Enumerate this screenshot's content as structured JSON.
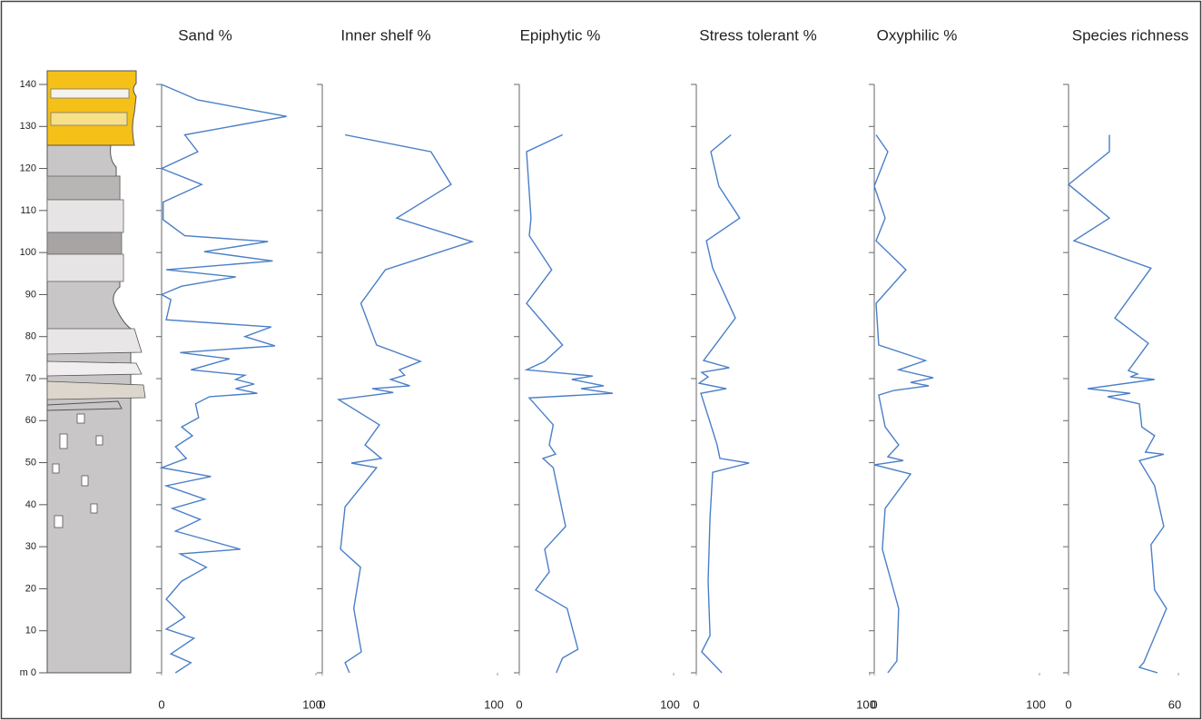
{
  "depth_axis": {
    "xlim": [
      0,
      140
    ],
    "xticks": [
      {
        "value": 0,
        "label": "m 0"
      },
      10,
      20,
      30,
      40,
      50,
      60,
      70,
      80,
      90,
      100,
      110,
      120,
      130,
      140
    ]
  },
  "chart_data": [
    {
      "type": "line",
      "title": "Sand %",
      "color": "#4a7fc8",
      "ylim": [
        0,
        100
      ],
      "yticks": [
        0,
        100
      ],
      "x": [
        140,
        136.3,
        132.4,
        128,
        124,
        120,
        116.2,
        112,
        107.8,
        104,
        102.6,
        100.2,
        98,
        95.9,
        94.2,
        92,
        90,
        88.8,
        84,
        82.3,
        80,
        77.8,
        76.2,
        74.7,
        72.1,
        70.8,
        69.8,
        68.7,
        67.6,
        66.5,
        65.7,
        64,
        60.7,
        58.5,
        56.4,
        53.8,
        51,
        48.8,
        46.7,
        44.5,
        41.3,
        39.1,
        36.5,
        33.7,
        29.4,
        28.3,
        25.1,
        21.8,
        17.5,
        13.2,
        10.4,
        8.2,
        4.5,
        2.4,
        0
      ],
      "values": [
        0,
        23.5,
        81,
        15,
        23.5,
        0,
        26,
        1,
        1,
        15,
        69,
        27.6,
        72,
        3,
        48,
        13,
        0,
        6,
        3,
        71,
        54,
        73.5,
        12,
        44,
        19,
        54,
        48,
        60,
        48,
        62,
        31,
        22,
        24,
        13,
        20,
        9,
        16,
        0,
        32,
        3,
        28,
        7,
        25,
        9,
        51,
        12,
        29,
        13,
        3,
        15,
        3,
        21,
        6,
        19,
        9
      ]
    },
    {
      "type": "line",
      "title": "Inner shelf %",
      "color": "#4a7fc8",
      "ylim": [
        0,
        100
      ],
      "yticks": [
        0,
        100
      ],
      "x": [
        128,
        124,
        116.2,
        108.2,
        102.6,
        95.9,
        87.9,
        78,
        74.1,
        72.1,
        70.8,
        69.8,
        68.3,
        67.6,
        66.7,
        65,
        59,
        54.2,
        51,
        49.9,
        48.8,
        39.5,
        29.4,
        25.1,
        15.3,
        5,
        2.4,
        0
      ],
      "values": [
        13,
        62,
        73.5,
        42.5,
        85.5,
        36,
        22,
        31,
        56,
        44,
        47,
        39,
        50,
        28.5,
        40.5,
        9.3,
        32.6,
        24.4,
        33.7,
        16.6,
        31,
        13,
        10.4,
        21.8,
        18,
        22.3,
        13,
        15.5
      ]
    },
    {
      "type": "line",
      "title": "Epiphytic %",
      "color": "#4a7fc8",
      "ylim": [
        0,
        100
      ],
      "yticks": [
        0,
        100
      ],
      "x": [
        128,
        124,
        108.2,
        104,
        95.9,
        87.9,
        78,
        74.1,
        72.1,
        70.6,
        69.8,
        68.3,
        67.6,
        66.5,
        65.4,
        59,
        54.2,
        52,
        51,
        48.8,
        34.8,
        29.4,
        24,
        19.7,
        15.3,
        5.6,
        3.5,
        0
      ],
      "values": [
        28,
        4.7,
        7.6,
        6.5,
        21,
        4.7,
        28,
        16.5,
        4.7,
        47.6,
        34,
        54.7,
        40,
        60.6,
        6.5,
        22,
        19.4,
        23.5,
        15.3,
        22,
        30,
        16.5,
        19.4,
        10.6,
        31,
        38,
        28,
        24
      ]
    },
    {
      "type": "line",
      "title": "Stress tolerant %",
      "color": "#4a7fc8",
      "ylim": [
        0,
        100
      ],
      "yticks": [
        0,
        100
      ],
      "x": [
        128,
        124,
        115.8,
        108.2,
        102.8,
        96.3,
        84.4,
        74.3,
        72.6,
        71.5,
        70.4,
        68.9,
        67.6,
        66.5,
        59.6,
        54.2,
        51,
        49.9,
        47.7,
        36.9,
        21.8,
        8.9,
        5,
        0
      ],
      "values": [
        20,
        8.4,
        13,
        25,
        5.8,
        9.4,
        22.5,
        4.2,
        19,
        3.1,
        6.8,
        1.6,
        17.3,
        2.6,
        7.9,
        12,
        13.6,
        30.4,
        9.4,
        7.9,
        6.8,
        7.9,
        3.1,
        14.7
      ]
    },
    {
      "type": "line",
      "title": "Oxyphilic %",
      "color": "#4a7fc8",
      "ylim": [
        0,
        100
      ],
      "yticks": [
        0,
        100
      ],
      "x": [
        128,
        124,
        115.8,
        108.2,
        102.8,
        95.9,
        87.9,
        78,
        74.3,
        72.1,
        70.2,
        69.1,
        68.3,
        67.2,
        66.1,
        58.5,
        54.2,
        51.4,
        50.5,
        49.5,
        47.3,
        39.1,
        29.4,
        15.3,
        2.8,
        0
      ],
      "values": [
        1.1,
        8.2,
        0,
        6.6,
        1.1,
        19.2,
        1.1,
        2.7,
        31,
        14.8,
        35.7,
        22,
        33,
        12,
        2.7,
        6.6,
        14.8,
        8.2,
        17.6,
        0,
        22,
        6.6,
        4.9,
        14.8,
        13.7,
        8.2
      ]
    },
    {
      "type": "line",
      "title": "Species richness",
      "color": "#4a7fc8",
      "ylim": [
        0,
        60
      ],
      "yticks": [
        0,
        60
      ],
      "x": [
        128,
        124,
        116.2,
        108.2,
        102.8,
        96.3,
        84.4,
        78.4,
        71.9,
        71.1,
        70.4,
        69.8,
        67.6,
        66.5,
        65.7,
        64,
        58.5,
        56.4,
        52.5,
        52,
        50.5,
        44.5,
        34.8,
        30.5,
        19.7,
        15.3,
        2.4,
        1.3,
        0
      ],
      "values": [
        22.3,
        22.3,
        0,
        22.3,
        3,
        45,
        25.3,
        43.6,
        32.7,
        37.7,
        33.7,
        47,
        10.4,
        33.7,
        21.3,
        38.7,
        40,
        47,
        42,
        52,
        38.7,
        47,
        52,
        45,
        47,
        53.5,
        41,
        38.7,
        48.6
      ]
    }
  ]
}
